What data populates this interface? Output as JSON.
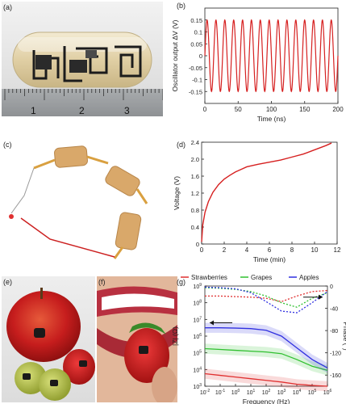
{
  "panel_labels": {
    "a": "(a)",
    "b": "(b)",
    "c": "(c)",
    "d": "(d)",
    "e": "(e)",
    "f": "(f)",
    "g": "(g)"
  },
  "ruler": {
    "marks": [
      "1",
      "2",
      "3"
    ]
  },
  "chart_data": [
    {
      "id": "b",
      "type": "line",
      "xlabel": "Time (ns)",
      "ylabel": "Oscillator output ΔV (V)",
      "xlim": [
        0,
        200
      ],
      "ylim": [
        -0.2,
        0.2
      ],
      "xticks": [
        "0",
        "50",
        "100",
        "150",
        "200"
      ],
      "yticks": [
        "-0.15",
        "-0.1",
        "-0.05",
        "0",
        "0.05",
        "0.1",
        "0.15"
      ],
      "series": [
        {
          "amplitude": 0.15,
          "cycles": 15,
          "color": "#d62020"
        }
      ]
    },
    {
      "id": "d",
      "type": "line",
      "xlabel": "Time (min)",
      "ylabel": "Voltage (V)",
      "xlim": [
        0,
        12
      ],
      "ylim": [
        0,
        2.4
      ],
      "xticks": [
        "0",
        "2",
        "4",
        "6",
        "8",
        "10",
        "12"
      ],
      "yticks": [
        "0",
        "0.4",
        "0.8",
        "1.2",
        "1.6",
        "2.0",
        "2.4"
      ],
      "series": [
        {
          "color": "#d62020",
          "x": [
            0,
            0.1,
            0.3,
            0.6,
            1,
            1.5,
            2,
            2.5,
            3,
            3.5,
            4,
            5,
            6,
            7,
            8,
            9,
            10,
            11,
            11.5
          ],
          "y": [
            0.05,
            0.45,
            0.75,
            1.0,
            1.22,
            1.4,
            1.53,
            1.62,
            1.7,
            1.76,
            1.82,
            1.88,
            1.93,
            1.98,
            2.05,
            2.12,
            2.22,
            2.32,
            2.38
          ]
        }
      ]
    },
    {
      "id": "g",
      "type": "line",
      "xlabel": "Frequency (Hz)",
      "ylabel": "|Z| (Ω)",
      "ylabel_right": "Phase (°)",
      "xscale": "log",
      "yscale": "log",
      "xticks": [
        "10-2",
        "10-1",
        "100",
        "101",
        "102",
        "103",
        "104",
        "105",
        "106"
      ],
      "yticks": [
        "103",
        "104",
        "105",
        "106",
        "107",
        "108",
        "109"
      ],
      "yticks_right": [
        "0",
        "-40",
        "-80",
        "-120",
        "-160"
      ],
      "legend": [
        "Strawberries",
        "Grapes",
        "Apples"
      ],
      "colors": {
        "Strawberries": "#e03030",
        "Grapes": "#30c030",
        "Apples": "#3030e0"
      },
      "series": [
        {
          "name": "Strawberries",
          "x": [
            -2,
            -1,
            0,
            1,
            2,
            3,
            4,
            5,
            6
          ],
          "logz": [
            3.75,
            3.65,
            3.55,
            3.45,
            3.35,
            3.25,
            3.12,
            3.05,
            3.0
          ],
          "phase": [
            -18,
            -18,
            -19,
            -20,
            -22,
            -28,
            -18,
            -10,
            -8
          ]
        },
        {
          "name": "Grapes",
          "x": [
            -2,
            -1,
            0,
            1,
            2,
            3,
            4,
            5,
            6
          ],
          "logz": [
            5.25,
            5.2,
            5.15,
            5.1,
            5.05,
            4.95,
            4.6,
            4.2,
            3.95
          ],
          "phase": [
            -3,
            -4,
            -6,
            -10,
            -18,
            -30,
            -38,
            -22,
            -12
          ]
        },
        {
          "name": "Apples",
          "x": [
            -2,
            -1,
            0,
            1,
            2,
            3,
            4,
            5,
            6
          ],
          "logz": [
            6.5,
            6.5,
            6.48,
            6.45,
            6.35,
            6.0,
            5.3,
            4.6,
            4.1
          ],
          "phase": [
            -2,
            -3,
            -5,
            -12,
            -28,
            -45,
            -48,
            -30,
            -10
          ]
        }
      ]
    }
  ]
}
